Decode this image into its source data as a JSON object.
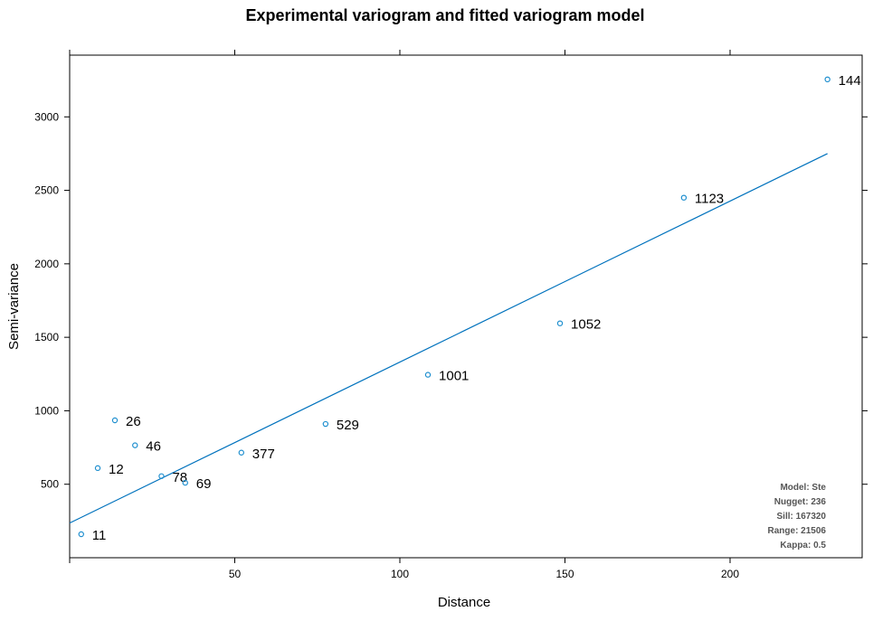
{
  "chart_data": {
    "type": "scatter",
    "title": "Experimental variogram and fitted variogram model",
    "xlabel": "Distance",
    "ylabel": "Semi-variance",
    "xlim": [
      0,
      240
    ],
    "ylim": [
      0,
      3420
    ],
    "xticks": [
      50,
      100,
      150,
      200
    ],
    "yticks": [
      500,
      1000,
      1500,
      2000,
      2500,
      3000
    ],
    "grid": false,
    "points": [
      {
        "x": 3.5,
        "y": 160,
        "label": "11"
      },
      {
        "x": 8.5,
        "y": 610,
        "label": "12"
      },
      {
        "x": 13.7,
        "y": 935,
        "label": "26"
      },
      {
        "x": 19.8,
        "y": 765,
        "label": "46"
      },
      {
        "x": 27.8,
        "y": 555,
        "label": "78"
      },
      {
        "x": 35.0,
        "y": 510,
        "label": "69"
      },
      {
        "x": 52.0,
        "y": 715,
        "label": "377"
      },
      {
        "x": 77.5,
        "y": 910,
        "label": "529"
      },
      {
        "x": 108.5,
        "y": 1245,
        "label": "1001"
      },
      {
        "x": 148.5,
        "y": 1595,
        "label": "1052"
      },
      {
        "x": 186.0,
        "y": 2450,
        "label": "1123"
      },
      {
        "x": 229.5,
        "y": 3255,
        "label": "144"
      }
    ],
    "fitted_line": {
      "x": [
        0,
        229.5
      ],
      "y": [
        236,
        2750
      ]
    },
    "model_info": [
      "Model: Ste",
      "Nugget: 236",
      "Sill: 167320",
      "Range: 21506",
      "Kappa: 0.5"
    ],
    "colors": {
      "points": "#1f8fcf",
      "line": "#0072bd",
      "info": "#555555"
    }
  }
}
